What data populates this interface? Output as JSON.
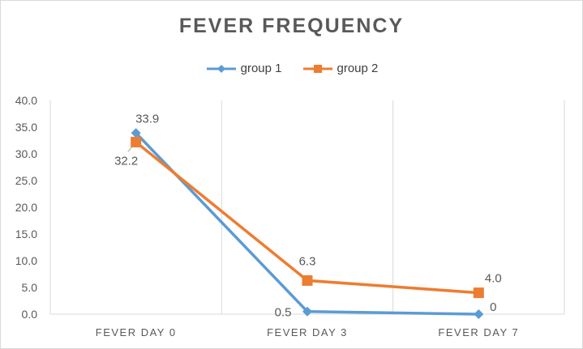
{
  "chart_data": {
    "type": "line",
    "title": "FEVER FREQUENCY",
    "xlabel": "",
    "ylabel": "",
    "categories": [
      "FEVER DAY 0",
      "FEVER DAY 3",
      "FEVER DAY 7"
    ],
    "ylim": [
      0,
      40
    ],
    "yticks": [
      "0.0",
      "5.0",
      "10.0",
      "15.0",
      "20.0",
      "25.0",
      "30.0",
      "35.0",
      "40.0"
    ],
    "grid": "vertical",
    "legend_position": "top",
    "series": [
      {
        "name": "group 1",
        "values": [
          33.9,
          0.5,
          0
        ],
        "labels": [
          "33.9",
          "0.5",
          "0"
        ],
        "color": "#5b9bd5",
        "marker": "diamond"
      },
      {
        "name": "group 2",
        "values": [
          32.2,
          6.3,
          4.0
        ],
        "labels": [
          "32.2",
          "6.3",
          "4.0"
        ],
        "color": "#ed7d31",
        "marker": "square"
      }
    ]
  }
}
